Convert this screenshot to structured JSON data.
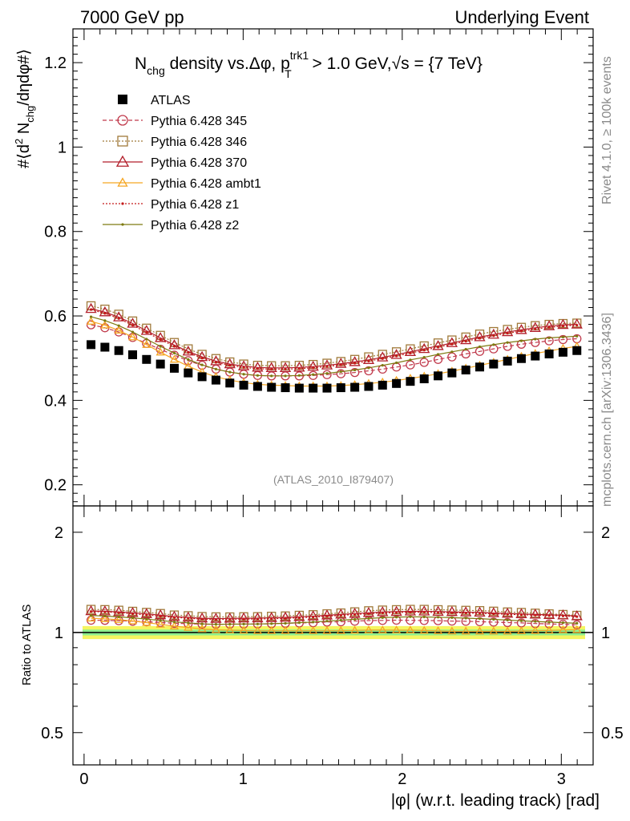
{
  "header": {
    "left": "7000 GeV pp",
    "right": "Underlying Event"
  },
  "side_labels": {
    "rivet": "Rivet 4.1.0, ≥ 100k events",
    "mcplots": "mcplots.cern.ch [arXiv:1306.3436]"
  },
  "chart_data": {
    "type": "scatter",
    "title": "N_chg density vs. Δφ, p_T^trk1 > 1.0 GeV, √s = {7 TeV}",
    "title_parts": {
      "n": "N",
      "chg": "chg",
      "mid": " density vs.Δφ, p",
      "sup": "trk1",
      "sub": "T",
      "rest": " > 1.0 GeV,",
      "sqrt": "√",
      "s": "s = {7 TeV}"
    },
    "ylabel": "#⟨d² N_chg/dηdφ#⟩",
    "ylabel_parts": {
      "a": "#⟨d",
      "sq": "2",
      "b": " N",
      "chg": "chg",
      "c": "/dηdφ#⟩"
    },
    "xlabel": "|φ| (w.r.t. leading track) [rad]",
    "ratio_ylabel": "Ratio to ATLAS",
    "watermark": "(ATLAS_2010_I879407)",
    "xlim": [
      -0.07,
      3.2
    ],
    "ylim": [
      0.15,
      1.28
    ],
    "ratio_ylim": [
      0.4,
      2.4
    ],
    "x_ticks": [
      "0",
      "1",
      "2",
      "3"
    ],
    "y_ticks": [
      "0.2",
      "0.4",
      "0.6",
      "0.8",
      "1",
      "1.2"
    ],
    "ratio_ticks": [
      "0.5",
      "1",
      "2"
    ],
    "ratio_ticks_right": [
      "0.5",
      "1",
      "2"
    ],
    "nbins": 36,
    "series": [
      {
        "name": "ATLAS",
        "color": "#000000",
        "marker": "filled-square",
        "dash": "none",
        "values": [
          0.532,
          0.526,
          0.518,
          0.508,
          0.497,
          0.486,
          0.476,
          0.465,
          0.456,
          0.448,
          0.441,
          0.436,
          0.433,
          0.431,
          0.43,
          0.429,
          0.429,
          0.429,
          0.43,
          0.431,
          0.433,
          0.436,
          0.44,
          0.445,
          0.451,
          0.458,
          0.465,
          0.472,
          0.479,
          0.486,
          0.493,
          0.499,
          0.505,
          0.51,
          0.514,
          0.518
        ]
      },
      {
        "name": "Pythia 6.428 345",
        "color": "#c0394b",
        "marker": "open-circle",
        "dash": "dashed",
        "values": [
          0.579,
          0.572,
          0.562,
          0.549,
          0.535,
          0.521,
          0.507,
          0.494,
          0.483,
          0.474,
          0.467,
          0.462,
          0.459,
          0.458,
          0.458,
          0.458,
          0.459,
          0.461,
          0.463,
          0.466,
          0.47,
          0.474,
          0.479,
          0.484,
          0.49,
          0.497,
          0.503,
          0.51,
          0.516,
          0.522,
          0.528,
          0.533,
          0.537,
          0.541,
          0.544,
          0.546
        ]
      },
      {
        "name": "Pythia 6.428 346",
        "color": "#a07a3a",
        "marker": "open-square",
        "dash": "dotted",
        "values": [
          0.624,
          0.616,
          0.604,
          0.588,
          0.571,
          0.554,
          0.537,
          0.522,
          0.509,
          0.499,
          0.491,
          0.486,
          0.483,
          0.482,
          0.482,
          0.483,
          0.485,
          0.488,
          0.492,
          0.497,
          0.503,
          0.509,
          0.515,
          0.522,
          0.529,
          0.536,
          0.543,
          0.55,
          0.557,
          0.563,
          0.568,
          0.573,
          0.577,
          0.58,
          0.582,
          0.583
        ]
      },
      {
        "name": "Pythia 6.428 370",
        "color": "#b21e2a",
        "marker": "open-triangle",
        "dash": "solid",
        "values": [
          0.617,
          0.609,
          0.597,
          0.582,
          0.565,
          0.548,
          0.531,
          0.516,
          0.503,
          0.493,
          0.486,
          0.481,
          0.478,
          0.477,
          0.477,
          0.478,
          0.48,
          0.483,
          0.487,
          0.491,
          0.496,
          0.502,
          0.508,
          0.515,
          0.522,
          0.529,
          0.536,
          0.543,
          0.55,
          0.556,
          0.562,
          0.567,
          0.572,
          0.576,
          0.579,
          0.58
        ]
      },
      {
        "name": "Pythia 6.428 ambt1",
        "color": "#f5a623",
        "marker": "open-triangle-small",
        "dash": "solid",
        "values": [
          0.587,
          0.578,
          0.566,
          0.55,
          0.532,
          0.514,
          0.497,
          0.481,
          0.467,
          0.456,
          0.448,
          0.442,
          0.438,
          0.436,
          0.435,
          0.434,
          0.434,
          0.434,
          0.435,
          0.437,
          0.44,
          0.443,
          0.447,
          0.452,
          0.457,
          0.463,
          0.469,
          0.476,
          0.483,
          0.49,
          0.497,
          0.504,
          0.511,
          0.517,
          0.523,
          0.528
        ]
      },
      {
        "name": "Pythia 6.428 z1",
        "color": "#c41a1a",
        "marker": "dot",
        "dash": "dotted",
        "values": [
          0.615,
          0.606,
          0.594,
          0.578,
          0.561,
          0.544,
          0.528,
          0.513,
          0.5,
          0.49,
          0.483,
          0.478,
          0.475,
          0.474,
          0.474,
          0.475,
          0.477,
          0.48,
          0.484,
          0.488,
          0.493,
          0.499,
          0.505,
          0.512,
          0.519,
          0.526,
          0.533,
          0.54,
          0.547,
          0.553,
          0.559,
          0.564,
          0.569,
          0.573,
          0.576,
          0.578
        ]
      },
      {
        "name": "Pythia 6.428 z2",
        "color": "#7d7a10",
        "marker": "dot",
        "dash": "solid",
        "values": [
          0.598,
          0.589,
          0.577,
          0.562,
          0.545,
          0.528,
          0.512,
          0.497,
          0.484,
          0.474,
          0.467,
          0.462,
          0.459,
          0.458,
          0.458,
          0.459,
          0.461,
          0.464,
          0.468,
          0.472,
          0.477,
          0.483,
          0.489,
          0.496,
          0.502,
          0.509,
          0.515,
          0.521,
          0.527,
          0.532,
          0.537,
          0.541,
          0.545,
          0.548,
          0.55,
          0.552
        ]
      }
    ]
  }
}
